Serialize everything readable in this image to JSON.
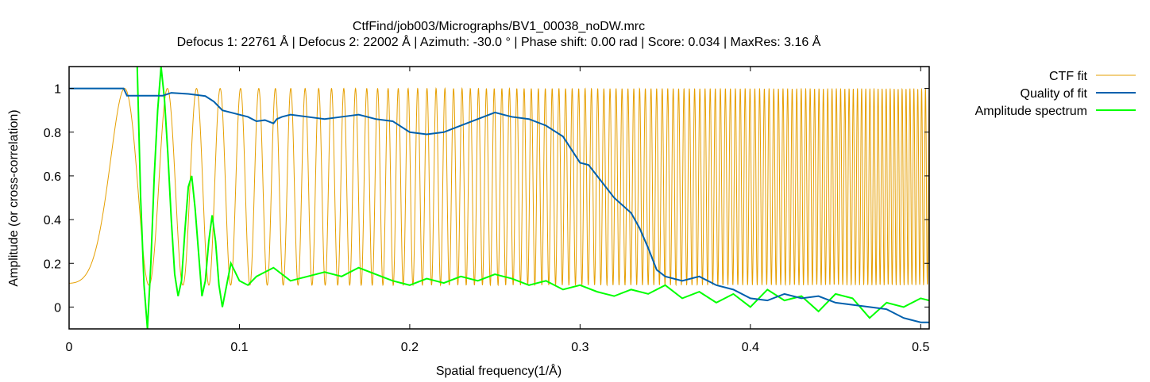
{
  "chart_data": {
    "type": "line",
    "title": "CtfFind/job003/Micrographs/BV1_00038_noDW.mrc",
    "subtitle": "Defocus 1: 22761 Å | Defocus 2: 22002 Å | Azimuth: -30.0 ° | Phase shift: 0.00 rad | Score: 0.034 | MaxRes: 3.16 Å",
    "xlabel": "Spatial frequency(1/Å)",
    "ylabel": "Amplitude (or cross-correlation)",
    "xlim": [
      0,
      0.505
    ],
    "ylim": [
      -0.1,
      1.1
    ],
    "x_ticks": [
      0,
      0.1,
      0.2,
      0.3,
      0.4,
      0.5
    ],
    "x_tick_labels": [
      "0",
      "0.1",
      "0.2",
      "0.3",
      "0.4",
      "0.5"
    ],
    "y_ticks": [
      0,
      0.2,
      0.4,
      0.6,
      0.8,
      1
    ],
    "y_tick_labels": [
      "0",
      "0.2",
      "0.4",
      "0.6",
      "0.8",
      "1"
    ],
    "grid": false,
    "legend_position": "right",
    "series": [
      {
        "name": "CTF fit",
        "color": "#e69f00",
        "model": "ctf",
        "params": {
          "defocus_mean_A": 22381,
          "wavelength_A": 0.0197,
          "amplitude_contrast": 0.1,
          "baseline": 0.1
        }
      },
      {
        "name": "Quality of fit",
        "color": "#0060ad",
        "x": [
          0.0,
          0.032,
          0.034,
          0.055,
          0.06,
          0.07,
          0.08,
          0.085,
          0.09,
          0.095,
          0.1,
          0.105,
          0.11,
          0.115,
          0.12,
          0.122,
          0.125,
          0.13,
          0.14,
          0.15,
          0.16,
          0.17,
          0.18,
          0.19,
          0.2,
          0.21,
          0.22,
          0.23,
          0.24,
          0.25,
          0.26,
          0.27,
          0.28,
          0.29,
          0.295,
          0.3,
          0.305,
          0.31,
          0.32,
          0.33,
          0.335,
          0.34,
          0.345,
          0.35,
          0.36,
          0.37,
          0.38,
          0.39,
          0.4,
          0.41,
          0.42,
          0.43,
          0.44,
          0.45,
          0.46,
          0.47,
          0.48,
          0.49,
          0.5,
          0.505
        ],
        "values": [
          1.0,
          1.0,
          0.967,
          0.967,
          0.98,
          0.975,
          0.965,
          0.94,
          0.9,
          0.89,
          0.88,
          0.87,
          0.85,
          0.855,
          0.84,
          0.86,
          0.87,
          0.88,
          0.87,
          0.86,
          0.87,
          0.88,
          0.86,
          0.85,
          0.8,
          0.79,
          0.8,
          0.83,
          0.86,
          0.89,
          0.87,
          0.86,
          0.83,
          0.78,
          0.72,
          0.66,
          0.65,
          0.6,
          0.5,
          0.43,
          0.36,
          0.27,
          0.17,
          0.14,
          0.12,
          0.14,
          0.1,
          0.08,
          0.04,
          0.03,
          0.06,
          0.04,
          0.05,
          0.02,
          0.01,
          0.0,
          -0.01,
          -0.05,
          -0.07,
          -0.07
        ]
      },
      {
        "name": "Amplitude spectrum",
        "color": "#00ff00",
        "x": [
          0.04,
          0.042,
          0.044,
          0.046,
          0.048,
          0.05,
          0.052,
          0.054,
          0.056,
          0.058,
          0.06,
          0.062,
          0.064,
          0.066,
          0.068,
          0.07,
          0.072,
          0.074,
          0.076,
          0.078,
          0.08,
          0.082,
          0.084,
          0.086,
          0.088,
          0.09,
          0.095,
          0.1,
          0.105,
          0.11,
          0.12,
          0.13,
          0.14,
          0.15,
          0.16,
          0.17,
          0.18,
          0.19,
          0.2,
          0.21,
          0.22,
          0.23,
          0.24,
          0.25,
          0.26,
          0.27,
          0.28,
          0.29,
          0.3,
          0.31,
          0.32,
          0.33,
          0.34,
          0.35,
          0.36,
          0.37,
          0.38,
          0.39,
          0.4,
          0.41,
          0.42,
          0.43,
          0.44,
          0.45,
          0.46,
          0.47,
          0.48,
          0.49,
          0.5,
          0.505
        ],
        "values": [
          1.1,
          0.5,
          0.1,
          -0.1,
          0.2,
          0.6,
          0.9,
          1.1,
          0.95,
          0.7,
          0.4,
          0.15,
          0.05,
          0.12,
          0.35,
          0.55,
          0.6,
          0.45,
          0.25,
          0.05,
          0.12,
          0.3,
          0.42,
          0.3,
          0.1,
          0.0,
          0.2,
          0.12,
          0.1,
          0.14,
          0.18,
          0.12,
          0.14,
          0.16,
          0.14,
          0.18,
          0.15,
          0.12,
          0.1,
          0.13,
          0.11,
          0.14,
          0.12,
          0.15,
          0.13,
          0.1,
          0.12,
          0.08,
          0.1,
          0.07,
          0.05,
          0.08,
          0.06,
          0.1,
          0.04,
          0.07,
          0.02,
          0.06,
          0.0,
          0.08,
          0.03,
          0.05,
          -0.02,
          0.06,
          0.04,
          -0.05,
          0.02,
          0.0,
          0.04,
          0.03
        ]
      }
    ]
  }
}
